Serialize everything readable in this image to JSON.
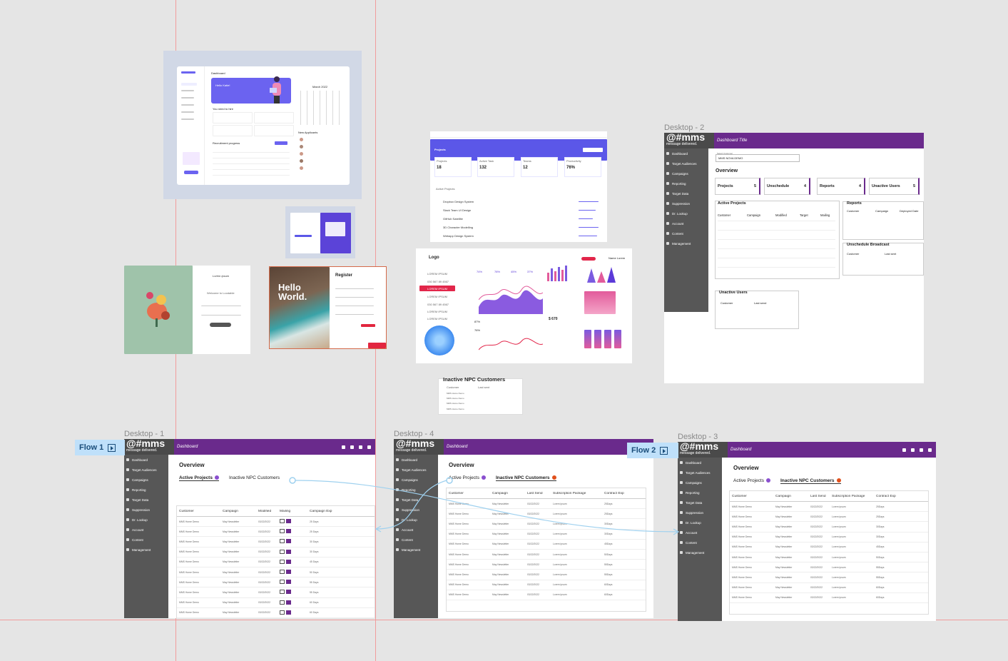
{
  "canvas": {
    "background": "#e5e5e5",
    "guide_color": "#f19c9c",
    "accent_purple": "#6a2a8c",
    "flow_color": "#bfe0fa"
  },
  "frames": {
    "desktop1": "Desktop - 1",
    "desktop2": "Desktop - 2",
    "desktop3": "Desktop - 3",
    "desktop4": "Desktop - 4"
  },
  "flows": {
    "flow1": "Flow 1",
    "flow2": "Flow 2"
  },
  "mms": {
    "logo": "@#mms",
    "tagline": "message delivered.",
    "dashboard_title": "Dashboard",
    "dashboard_title_2": "Dashboard Title",
    "overview": "Overview",
    "sidebar": [
      "Dashboard",
      "Target Audiences",
      "Campaigns",
      "Reporting",
      "Target Data",
      "Suppression",
      "Dr. Lookup",
      "Account",
      "Content",
      "Management"
    ],
    "tab_active_projects": "Active Projects",
    "tab_inactive": "Inactive NPC Customers",
    "cols_d1": [
      "Customer",
      "Campaign",
      "Modified",
      "Mailing",
      "Campaign Exp"
    ],
    "cols_d4": [
      "Customer",
      "Campaign",
      "Last Send",
      "Subscription Package",
      "Contract Exp"
    ],
    "row_customer": "MMS Home Demo",
    "row_campaign": "May Newsletter",
    "row_pkg": "Lorem ipsum",
    "rows_d1": [
      {
        "date": "03/22/2022",
        "exp": "25 Days"
      },
      {
        "date": "03/22/2022",
        "exp": "25 Days"
      },
      {
        "date": "03/22/2022",
        "exp": "30 Days"
      },
      {
        "date": "03/22/2022",
        "exp": "30 Days"
      },
      {
        "date": "03/22/2022",
        "exp": "45 Days"
      },
      {
        "date": "03/22/2022",
        "exp": "50 Days"
      },
      {
        "date": "03/22/2022",
        "exp": "55 Days"
      },
      {
        "date": "03/22/2022",
        "exp": "55 Days"
      },
      {
        "date": "03/22/2022",
        "exp": "60 Days"
      },
      {
        "date": "03/22/2022",
        "exp": "60 Days"
      }
    ],
    "rows_d4": [
      {
        "date": "03/22/2022",
        "exp": "25Days"
      },
      {
        "date": "03/22/2022",
        "exp": "25Days"
      },
      {
        "date": "03/22/2022",
        "exp": "30Days"
      },
      {
        "date": "03/22/2022",
        "exp": "30Days"
      },
      {
        "date": "03/22/2022",
        "exp": "45Days"
      },
      {
        "date": "03/22/2022",
        "exp": "50Days"
      },
      {
        "date": "03/22/2022",
        "exp": "55Days"
      },
      {
        "date": "03/22/2022",
        "exp": "55Days"
      },
      {
        "date": "03/22/2022",
        "exp": "60Days"
      },
      {
        "date": "03/22/2022",
        "exp": "60Days"
      }
    ],
    "d2": {
      "select_label": "Select Customer",
      "select_value": "MMS NOVA DEMO",
      "cards": [
        {
          "label": "Projects",
          "value": "5"
        },
        {
          "label": "Unschedule",
          "value": "4"
        },
        {
          "label": "Reports",
          "value": "4"
        },
        {
          "label": "Unactive Users",
          "value": "5"
        }
      ],
      "active_projects": "Active Projects",
      "ap_cols": [
        "Customer",
        "Campaign",
        "Modified",
        "Target",
        "Mailing"
      ],
      "reports": "Reports",
      "reports_cols": [
        "Customer",
        "Campaign",
        "Deployed Date"
      ],
      "unschedule": "Unschedule Broadcast",
      "unschedule_cols": [
        "Customer",
        "Last sent"
      ],
      "unactive": "Unactive Users",
      "unactive_cols": [
        "Customer",
        "Last send"
      ]
    }
  },
  "npc_card": {
    "title": "Inactive NPC Customers",
    "cols": [
      "Customer",
      "Last sent"
    ]
  },
  "thumbs": {
    "hr": {
      "title": "Dashboard",
      "hello": "Hello Katie!",
      "month": "March 2022",
      "need": "You need to hire",
      "recruit": "Recruitment progress",
      "applicants": "New Applicants",
      "support": "Support 24/7"
    },
    "projects": {
      "title": "Projects",
      "stats": [
        {
          "label": "Projects",
          "value": "18"
        },
        {
          "label": "Active Task",
          "value": "132"
        },
        {
          "label": "Teams",
          "value": "12"
        },
        {
          "label": "Productivity",
          "value": "76%"
        }
      ],
      "active": "Active Projects",
      "rows": [
        "Dropbox Design System",
        "Slack Team UI Design",
        "GitHub Satellite",
        "3D Character Modelling",
        "Webapp Design System"
      ]
    },
    "login": {
      "brand": "Lorem ipsum",
      "welcome": "Welcome to Loodable",
      "button": "Sign In"
    },
    "register": {
      "hello": "Hello World.",
      "title": "Register"
    },
    "analytics": {
      "logo": "Logo",
      "user": "Name Lorem",
      "menu": [
        "LOREM IPSUM",
        "030 567 89 4567",
        "LOREM IPSUM",
        "LOREM IPSUM",
        "030 567 89 4567",
        "LOREM IPSUM",
        "LOREM IPSUM"
      ],
      "kpis": [
        "74%",
        "78%",
        "45%",
        "37%"
      ],
      "stat": "$ 670",
      "p1": "87%",
      "p2": "76%"
    }
  }
}
